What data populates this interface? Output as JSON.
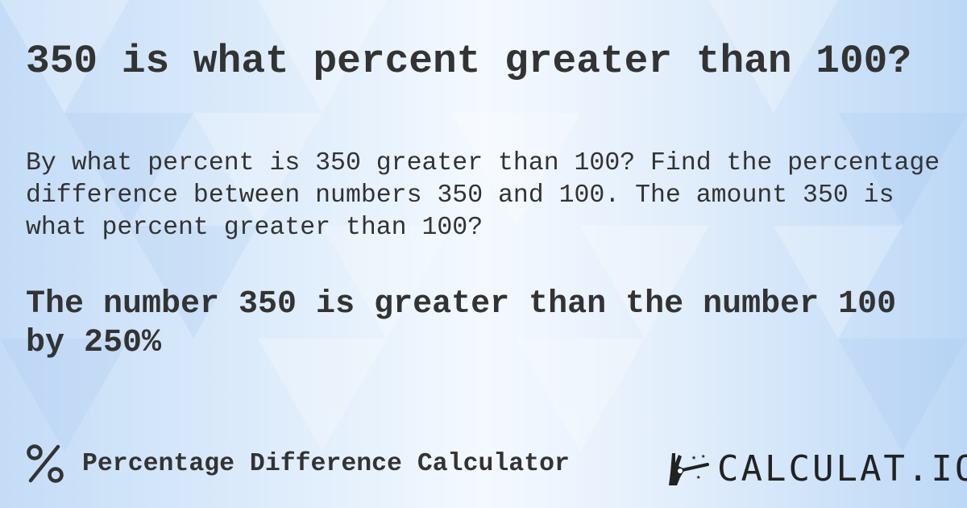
{
  "title": "350 is what percent greater than 100?",
  "description": "By what percent is 350 greater than 100? Find the percentage difference between numbers 350 and 100. The amount 350 is what percent greater than 100?",
  "result": "The number 350 is greater than the number 100 by 250%",
  "footer": {
    "icon": "percent-icon",
    "calculator_name": "Percentage Difference Calculator"
  },
  "logo": {
    "text": "CALCULAT.IO",
    "icon": "magic-hand-icon"
  },
  "colors": {
    "text": "#333333",
    "background": "#dceaf9"
  }
}
